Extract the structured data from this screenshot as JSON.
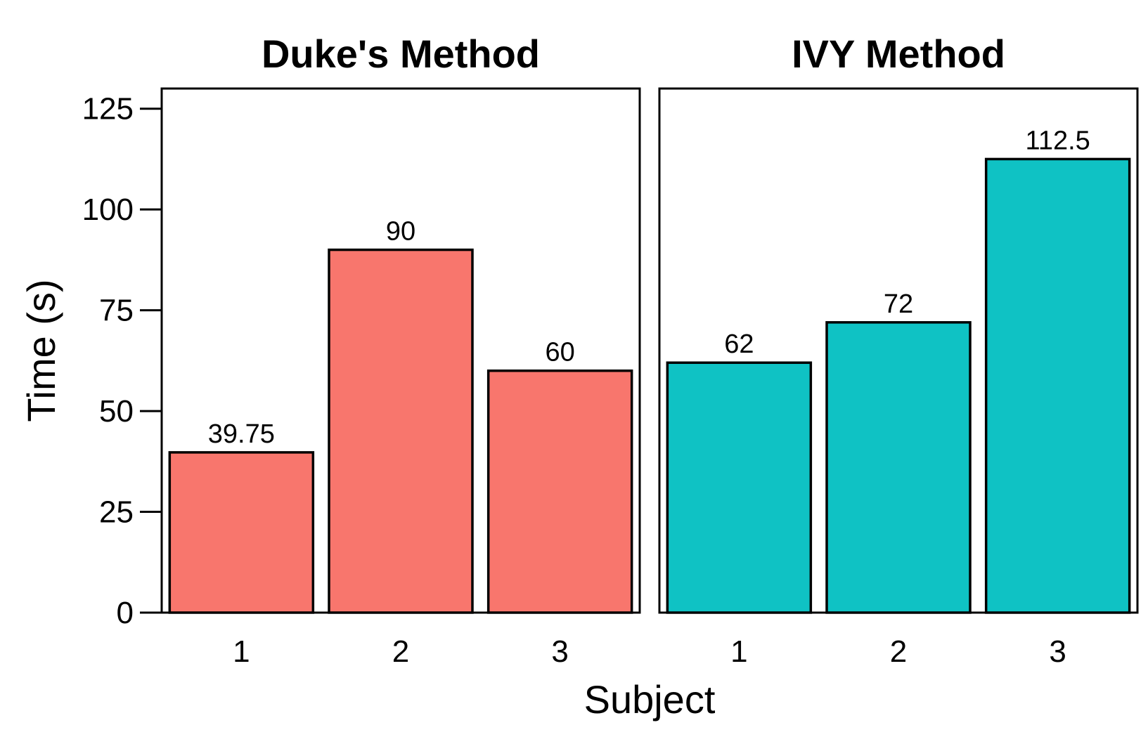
{
  "chart_data": {
    "type": "bar",
    "xlabel": "Subject",
    "ylabel": "Time (s)",
    "ylim": [
      0,
      130
    ],
    "yticks": [
      0,
      25,
      50,
      75,
      100,
      125
    ],
    "ytick_labels": [
      "0",
      "25",
      "50",
      "75",
      "100",
      "125"
    ],
    "categories": [
      "1",
      "2",
      "3"
    ],
    "grid": false,
    "legend": "none",
    "panels": [
      {
        "title": "Duke's Method",
        "color": "#F8766D",
        "values": [
          39.75,
          90,
          60
        ],
        "labels": [
          "39.75",
          "90",
          "60"
        ]
      },
      {
        "title": "IVY Method",
        "color": "#0FC2C4",
        "values": [
          62,
          72,
          112.5
        ],
        "labels": [
          "62",
          "72",
          "112.5"
        ]
      }
    ]
  }
}
